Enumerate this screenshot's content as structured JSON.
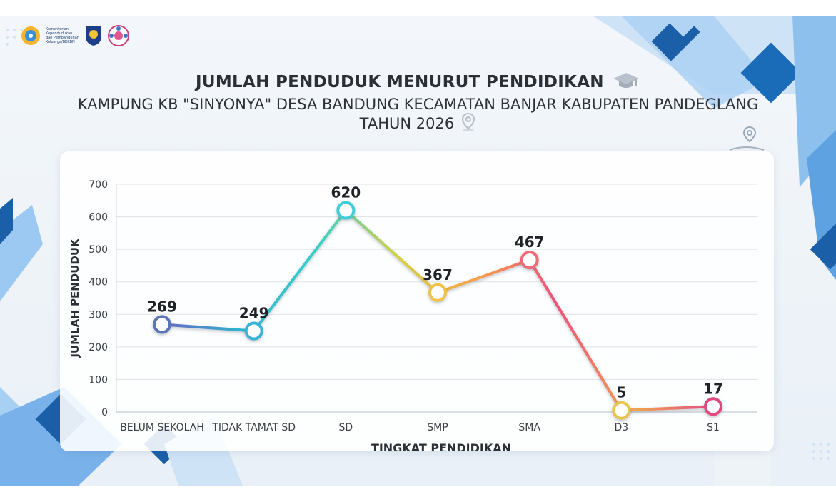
{
  "header": {
    "logo_text": "Kementerian Kependudukan dan Pembangunan Keluarga/BKKBN"
  },
  "chart_data": {
    "type": "line",
    "title": "JUMLAH PENDUDUK MENURUT PENDIDIKAN",
    "subtitle": "KAMPUNG KB \"SINYONYA\" DESA BANDUNG KECAMATAN BANJAR KABUPATEN PANDEGLANG",
    "subtitle2": "TAHUN 2026",
    "xlabel": "TINGKAT PENDIDIKAN",
    "ylabel": "JUMLAH PENDUDUK",
    "categories": [
      "BELUM SEKOLAH",
      "TIDAK TAMAT SD",
      "SD",
      "SMP",
      "SMA",
      "D3",
      "S1"
    ],
    "values": [
      269,
      249,
      620,
      367,
      467,
      5,
      17
    ],
    "data_labels": [
      "269",
      "249",
      "620",
      "367",
      "467",
      "5",
      "17"
    ],
    "ylim": [
      0,
      700
    ],
    "yticks": [
      "0",
      "100",
      "200",
      "300",
      "400",
      "500",
      "600",
      "700"
    ],
    "grid": true,
    "point_colors": [
      "#5b74b8",
      "#38b3d6",
      "#3fcdd6",
      "#f0c24a",
      "#f06a78",
      "#e8c64c",
      "#e0497f"
    ],
    "line_gradient": [
      "#6a64c4",
      "#2fb5cf",
      "#3ad0c8",
      "#d6d040",
      "#f6a14a",
      "#f0507a",
      "#f0a64e",
      "#e34c86"
    ]
  }
}
